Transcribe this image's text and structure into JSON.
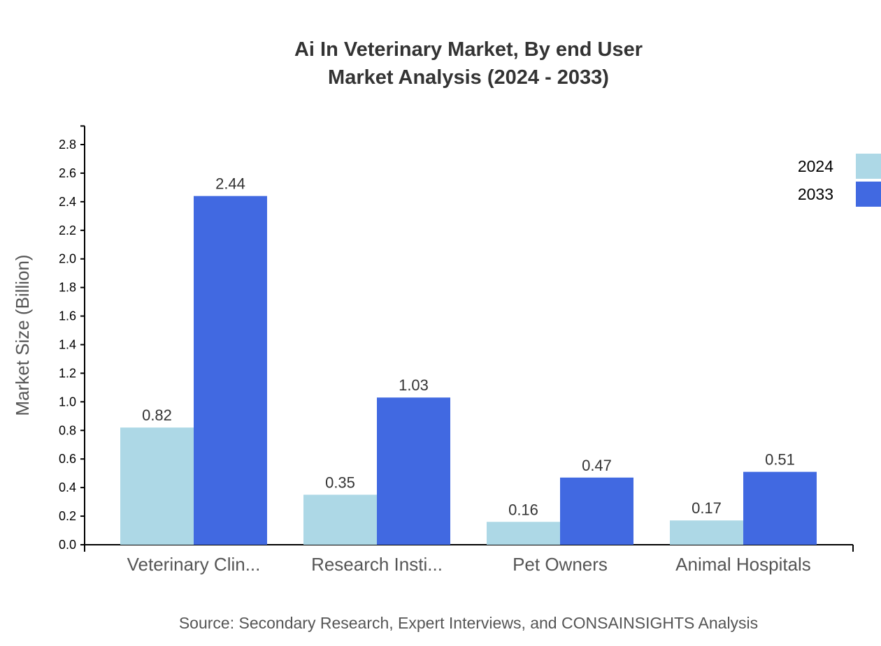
{
  "chart_data": {
    "type": "bar",
    "title_line1": "Ai In Veterinary Market, By end User",
    "title_line2": "Market Analysis (2024 - 2033)",
    "ylabel": "Market Size (Billion)",
    "xlabel": "",
    "ylim": [
      0,
      2.93
    ],
    "yticks": [
      "0.0",
      "0.2",
      "0.4",
      "0.6",
      "0.8",
      "1.0",
      "1.2",
      "1.4",
      "1.6",
      "1.8",
      "2.0",
      "2.2",
      "2.4",
      "2.6",
      "2.8"
    ],
    "grid": false,
    "legend_position": "top-right",
    "categories": [
      "Veterinary Clin...",
      "Research Insti...",
      "Pet Owners",
      "Animal Hospitals"
    ],
    "series": [
      {
        "name": "2024",
        "color": "#add8e6",
        "values": [
          0.82,
          0.35,
          0.16,
          0.17
        ]
      },
      {
        "name": "2033",
        "color": "#4169e1",
        "values": [
          2.44,
          1.03,
          0.47,
          0.51
        ]
      }
    ],
    "source": "Source: Secondary Research, Expert Interviews, and CONSAINSIGHTS Analysis"
  }
}
